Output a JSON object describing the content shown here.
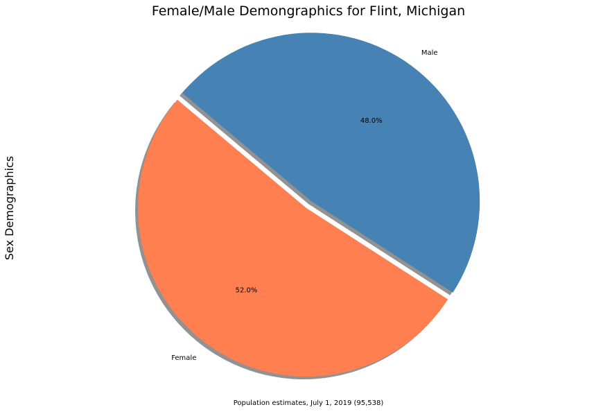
{
  "chart_data": {
    "type": "pie",
    "title": "Female/Male Demongraphics for Flint, Michigan",
    "ylabel": "Sex Demographics",
    "xlabel": "Population estimates, July 1, 2019 (95,538)",
    "slices": [
      {
        "label": "Female",
        "value": 52.0,
        "pct_label": "52.0%",
        "color": "#ff7f50",
        "explode": 0.0
      },
      {
        "label": "Male",
        "value": 48.0,
        "pct_label": "48.0%",
        "color": "#4682b4",
        "explode": 0.05
      }
    ],
    "start_angle_deg": 140,
    "shadow": true,
    "shadow_color": "#7f7f7f"
  }
}
